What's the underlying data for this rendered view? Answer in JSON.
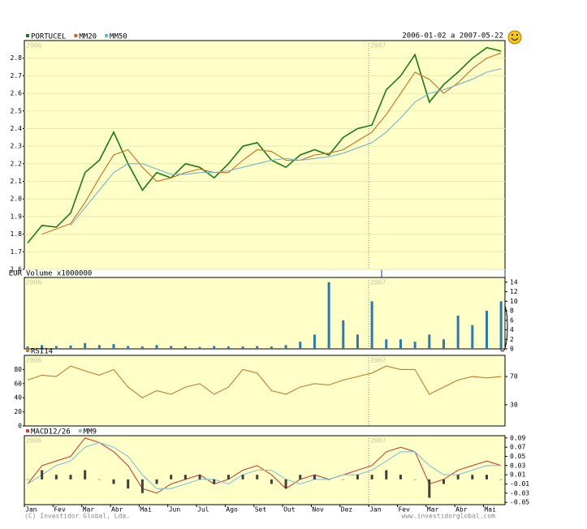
{
  "chart_data": [
    {
      "type": "line",
      "title": "2006-01-02 a 2007-05-22",
      "y_label": "EUR",
      "categories": [
        "Jan",
        null,
        "Fev",
        null,
        "Mar",
        null,
        "Abr",
        null,
        "Mai",
        null,
        "Jun",
        null,
        "Jul",
        null,
        "Ago",
        null,
        "Set",
        null,
        "Out",
        null,
        "Nov",
        null,
        "Dez",
        null,
        "Jan",
        null,
        "Fev",
        null,
        "Mar",
        null,
        "Abr",
        null,
        "Mai",
        null
      ],
      "series": [
        {
          "name": "PORTUCEL",
          "color": "#1a7a1a",
          "values": [
            1.75,
            1.85,
            1.84,
            1.92,
            2.15,
            2.22,
            2.38,
            2.2,
            2.05,
            2.15,
            2.12,
            2.2,
            2.18,
            2.12,
            2.2,
            2.3,
            2.32,
            2.22,
            2.18,
            2.25,
            2.28,
            2.25,
            2.35,
            2.4,
            2.42,
            2.62,
            2.7,
            2.82,
            2.55,
            2.65,
            2.72,
            2.8,
            2.86,
            2.84
          ]
        },
        {
          "name": "MM20",
          "color": "#d2691e",
          "values": [
            null,
            1.8,
            1.83,
            1.86,
            1.98,
            2.12,
            2.25,
            2.28,
            2.18,
            2.1,
            2.12,
            2.15,
            2.17,
            2.15,
            2.15,
            2.22,
            2.28,
            2.27,
            2.22,
            2.22,
            2.25,
            2.26,
            2.28,
            2.33,
            2.38,
            2.48,
            2.6,
            2.72,
            2.68,
            2.6,
            2.66,
            2.74,
            2.8,
            2.83
          ]
        },
        {
          "name": "MM50",
          "color": "#6fb7c9",
          "values": [
            null,
            null,
            null,
            1.85,
            1.95,
            2.05,
            2.15,
            2.2,
            2.2,
            2.17,
            2.14,
            2.14,
            2.15,
            2.15,
            2.16,
            2.18,
            2.2,
            2.22,
            2.23,
            2.22,
            2.23,
            2.24,
            2.26,
            2.29,
            2.32,
            2.38,
            2.46,
            2.55,
            2.6,
            2.62,
            2.65,
            2.68,
            2.72,
            2.74
          ]
        }
      ],
      "ylim": [
        1.6,
        2.9
      ],
      "yticks": [
        1.6,
        1.7,
        1.8,
        1.9,
        {
          "value": 2,
          "label": "2.0"
        },
        2.1,
        2.2,
        2.3,
        2.4,
        2.5,
        2.6,
        2.7,
        2.8
      ],
      "grid": true,
      "annotations": [
        "2006",
        "2007"
      ]
    },
    {
      "type": "bar",
      "title": "Volume x1000000",
      "series": [
        {
          "color": "#2a7ab0",
          "values": [
            0.5,
            0.8,
            0.6,
            0.7,
            1.2,
            0.8,
            1,
            0.6,
            0.5,
            0.8,
            0.6,
            0.5,
            0.4,
            0.6,
            0.5,
            0.5,
            0.6,
            0.5,
            0.8,
            1.5,
            3,
            14,
            6,
            3,
            10,
            2,
            2,
            1.5,
            3,
            2,
            7,
            5,
            8,
            10
          ]
        }
      ],
      "ylim": [
        0,
        15
      ],
      "yticks": [
        0,
        2,
        4,
        6,
        8,
        10,
        12,
        14
      ],
      "grid": false
    },
    {
      "type": "line",
      "series": [
        {
          "name": "RSI14",
          "color": "#c87830",
          "values": [
            65,
            72,
            70,
            85,
            78,
            72,
            80,
            55,
            40,
            50,
            45,
            55,
            60,
            45,
            55,
            80,
            75,
            50,
            45,
            55,
            60,
            58,
            65,
            70,
            75,
            85,
            80,
            80,
            45,
            55,
            65,
            70,
            68,
            70
          ]
        }
      ],
      "ylim": [
        0,
        100
      ],
      "yticks": [
        0,
        20,
        40,
        60,
        80
      ],
      "y2lim": [
        0,
        100
      ],
      "y2ticks": [
        30,
        70
      ],
      "grid": false
    },
    {
      "type": "line",
      "series": [
        {
          "name": "MACD12/26",
          "color": "#d04040",
          "values": [
            -0.01,
            0.03,
            0.04,
            0.05,
            0.09,
            0.08,
            0.06,
            0.03,
            -0.02,
            -0.03,
            -0.01,
            0.0,
            0.01,
            -0.01,
            0.0,
            0.02,
            0.03,
            0.01,
            -0.02,
            0.0,
            0.01,
            0.0,
            0.01,
            0.02,
            0.03,
            0.06,
            0.07,
            0.06,
            -0.01,
            0.0,
            0.02,
            0.03,
            0.04,
            0.03
          ]
        },
        {
          "name": "MM9",
          "color": "#7fc3d8",
          "values": [
            -0.01,
            0.01,
            0.03,
            0.04,
            0.07,
            0.08,
            0.07,
            0.05,
            0.01,
            -0.02,
            -0.02,
            -0.01,
            0.0,
            0.0,
            -0.01,
            0.01,
            0.02,
            0.02,
            0.0,
            -0.01,
            0.0,
            0.0,
            0.01,
            0.01,
            0.02,
            0.04,
            0.06,
            0.06,
            0.03,
            0.01,
            0.01,
            0.02,
            0.03,
            0.03
          ]
        },
        {
          "kind": "bar",
          "color": "#404040",
          "values": [
            0.0,
            0.02,
            0.01,
            0.01,
            0.02,
            0.0,
            -0.01,
            -0.02,
            -0.03,
            -0.01,
            0.01,
            0.01,
            0.01,
            -0.01,
            0.01,
            0.01,
            0.01,
            -0.01,
            -0.02,
            0.01,
            0.01,
            0.0,
            0.0,
            0.01,
            0.01,
            0.02,
            0.01,
            0.0,
            -0.04,
            -0.01,
            0.01,
            0.01,
            0.01,
            0.0
          ]
        }
      ],
      "ylim": [
        -0.055,
        0.095
      ],
      "yticks": [
        -0.05,
        -0.03,
        -0.01,
        0.01,
        0.03,
        0.05,
        0.07,
        0.09
      ],
      "grid": false
    }
  ],
  "copyright": "(C) Investidor Global, Lda.",
  "website": "www.investidorglobal.com"
}
